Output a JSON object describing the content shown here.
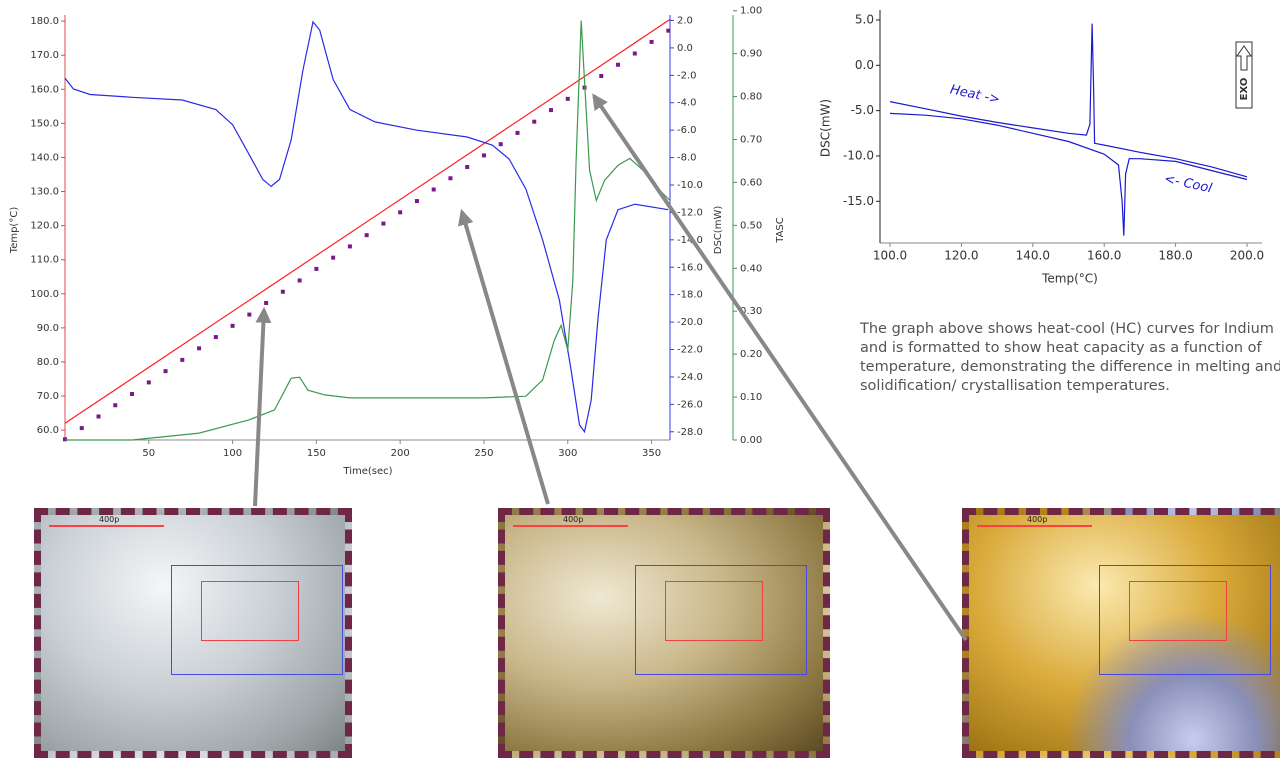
{
  "chart_data": [
    {
      "type": "line",
      "xlabel": "Time(sec)",
      "ylabel": "Temp(°C)",
      "y2label": "DSC(mW)",
      "y3label": "TASC",
      "xlim": [
        0,
        361
      ],
      "xticks": [
        50,
        100,
        150,
        200,
        250,
        300,
        350
      ],
      "ylim": [
        57.1,
        181.8
      ],
      "yticks": [
        {
          "value": 60,
          "label": "60.0"
        },
        {
          "value": 70,
          "label": "70.0"
        },
        {
          "value": 80,
          "label": "80.0"
        },
        {
          "value": 90,
          "label": "90.0"
        },
        {
          "value": 100,
          "label": "100.0"
        },
        {
          "value": 110,
          "label": "110.0"
        },
        {
          "value": 120,
          "label": "120.0"
        },
        {
          "value": 130,
          "label": "130.0"
        },
        {
          "value": 140,
          "label": "140.0"
        },
        {
          "value": 150,
          "label": "150.0"
        },
        {
          "value": 160,
          "label": "160.0"
        },
        {
          "value": 170,
          "label": "170.0"
        },
        {
          "value": 180,
          "label": "180.0"
        }
      ],
      "y2lim": [
        -28.6,
        2.4
      ],
      "y2ticks": [
        {
          "value": 2,
          "label": "2.0"
        },
        {
          "value": 0,
          "label": "0.0"
        },
        {
          "value": -2,
          "label": "-2.0"
        },
        {
          "value": -4,
          "label": "-4.0"
        },
        {
          "value": -6,
          "label": "-6.0"
        },
        {
          "value": -8,
          "label": "-8.0"
        },
        {
          "value": -10,
          "label": "-10.0"
        },
        {
          "value": -12,
          "label": "-12.0"
        },
        {
          "value": -14,
          "label": "-14.0"
        },
        {
          "value": -16,
          "label": "-16.0"
        },
        {
          "value": -18,
          "label": "-18.0"
        },
        {
          "value": -20,
          "label": "-20.0"
        },
        {
          "value": -22,
          "label": "-22.0"
        },
        {
          "value": -24,
          "label": "-24.0"
        },
        {
          "value": -26,
          "label": "-26.0"
        },
        {
          "value": -28,
          "label": "-28.0"
        }
      ],
      "y3lim": [
        0,
        0.99
      ],
      "y3ticks": [
        {
          "value": 0,
          "label": "0.00"
        },
        {
          "value": 0.1,
          "label": "0.10"
        },
        {
          "value": 0.2,
          "label": "0.20"
        },
        {
          "value": 0.3,
          "label": "0.30"
        },
        {
          "value": 0.4,
          "label": "0.40"
        },
        {
          "value": 0.5,
          "label": "0.50"
        },
        {
          "value": 0.6,
          "label": "0.60"
        },
        {
          "value": 0.7,
          "label": "0.70"
        },
        {
          "value": 0.8,
          "label": "0.80"
        },
        {
          "value": 0.9,
          "label": "0.90"
        },
        {
          "value": 1,
          "label": "1.00"
        }
      ],
      "series": [
        {
          "color": "#ff2020",
          "x": [
            0,
            361
          ],
          "values": [
            62,
            180.5
          ]
        },
        {
          "color": "#7a1a8a",
          "marker": "square",
          "x": [
            0,
            10,
            20,
            30,
            40,
            50,
            60,
            70,
            80,
            90,
            100,
            110,
            120,
            130,
            140,
            150,
            160,
            170,
            180,
            190,
            200,
            210,
            220,
            230,
            240,
            250,
            260,
            270,
            280,
            290,
            300,
            310,
            320,
            330,
            340,
            350,
            360
          ],
          "values": [
            57.3,
            60.6,
            64.0,
            67.3,
            70.6,
            74.0,
            77.3,
            80.6,
            84.0,
            87.3,
            90.6,
            93.9,
            97.3,
            100.6,
            103.9,
            107.3,
            110.6,
            113.9,
            117.2,
            120.6,
            123.9,
            127.2,
            130.6,
            133.9,
            137.2,
            140.6,
            143.9,
            147.2,
            150.5,
            153.9,
            157.2,
            160.5,
            163.9,
            167.2,
            170.5,
            173.9,
            177.2
          ]
        },
        {
          "color": "#2a2ae8",
          "axis": "y2",
          "x": [
            0,
            5,
            15,
            40,
            70,
            90,
            100,
            110,
            118,
            123,
            128,
            135,
            142,
            148,
            152,
            160,
            170,
            185,
            210,
            240,
            255,
            265,
            275,
            285,
            295,
            302,
            307,
            310,
            314,
            318,
            323,
            330,
            340,
            360
          ],
          "values": [
            -2.2,
            -3.0,
            -3.4,
            -3.6,
            -3.8,
            -4.5,
            -5.6,
            -7.8,
            -9.6,
            -10.1,
            -9.6,
            -6.7,
            -1.6,
            1.9,
            1.3,
            -2.3,
            -4.5,
            -5.4,
            -6.0,
            -6.5,
            -7.1,
            -8.1,
            -10.3,
            -14.0,
            -18.4,
            -23.5,
            -27.5,
            -28.0,
            -25.7,
            -19.8,
            -14.0,
            -11.8,
            -11.4,
            -11.8
          ]
        },
        {
          "color": "#3a9a50",
          "axis": "y3",
          "x": [
            0,
            40,
            80,
            110,
            125,
            135,
            140,
            145,
            155,
            170,
            200,
            250,
            275,
            285,
            292,
            296,
            300,
            303,
            305,
            308,
            310,
            313,
            317,
            322,
            330,
            337,
            345,
            355,
            361
          ],
          "values": [
            0.0,
            0.0,
            0.016,
            0.047,
            0.07,
            0.144,
            0.146,
            0.116,
            0.105,
            0.098,
            0.098,
            0.098,
            0.102,
            0.14,
            0.233,
            0.267,
            0.21,
            0.37,
            0.65,
            0.977,
            0.837,
            0.628,
            0.558,
            0.605,
            0.64,
            0.656,
            0.628,
            0.581,
            0.558
          ]
        }
      ]
    },
    {
      "type": "line",
      "xlabel": "Temp(°C)",
      "ylabel": "DSC(mW)",
      "xlim": [
        97.2,
        204.2
      ],
      "xticks": [
        {
          "value": 100,
          "label": "100.0"
        },
        {
          "value": 120,
          "label": "120.0"
        },
        {
          "value": 140,
          "label": "140.0"
        },
        {
          "value": 160,
          "label": "160.0"
        },
        {
          "value": 180,
          "label": "180.0"
        },
        {
          "value": 200,
          "label": "200.0"
        }
      ],
      "ylim": [
        -19.6,
        6.1
      ],
      "yticks": [
        {
          "value": 5,
          "label": "5.0"
        },
        {
          "value": 0,
          "label": "0.0"
        },
        {
          "value": -5,
          "label": "-5.0"
        },
        {
          "value": -10,
          "label": "-10.0"
        },
        {
          "value": -15,
          "label": "-15.0"
        }
      ],
      "annotations": [
        "Heat ->",
        "<- Cool",
        "EXO"
      ],
      "series": [
        {
          "color": "#1a1ad0",
          "x": [
            100,
            110,
            120,
            130,
            140,
            150,
            155,
            156,
            156.6,
            157,
            157.3,
            160,
            170,
            180,
            190,
            200
          ],
          "values": [
            -4.0,
            -4.8,
            -5.6,
            -6.3,
            -6.9,
            -7.5,
            -7.7,
            -6.5,
            4.6,
            -2,
            -8.6,
            -8.8,
            -9.6,
            -10.3,
            -11.2,
            -12.3
          ]
        },
        {
          "color": "#1a1ad0",
          "x": [
            200,
            190,
            180,
            170,
            167,
            166,
            165.5,
            165,
            164,
            160,
            150,
            140,
            130,
            120,
            110,
            100
          ],
          "values": [
            -12.6,
            -11.6,
            -10.6,
            -10.3,
            -10.3,
            -12,
            -18.8,
            -15,
            -11,
            -9.8,
            -8.4,
            -7.5,
            -6.6,
            -5.9,
            -5.5,
            -5.3
          ]
        }
      ]
    }
  ],
  "caption": "The graph above shows heat-cool (HC) curves for Indium and is formatted to show heat capacity as a function of temperature, demonstrating the difference in melting and solidification/ crystallisation temperatures.",
  "images": [
    {
      "scale_label": "400p"
    },
    {
      "scale_label": "400p"
    },
    {
      "scale_label": "400p"
    }
  ]
}
